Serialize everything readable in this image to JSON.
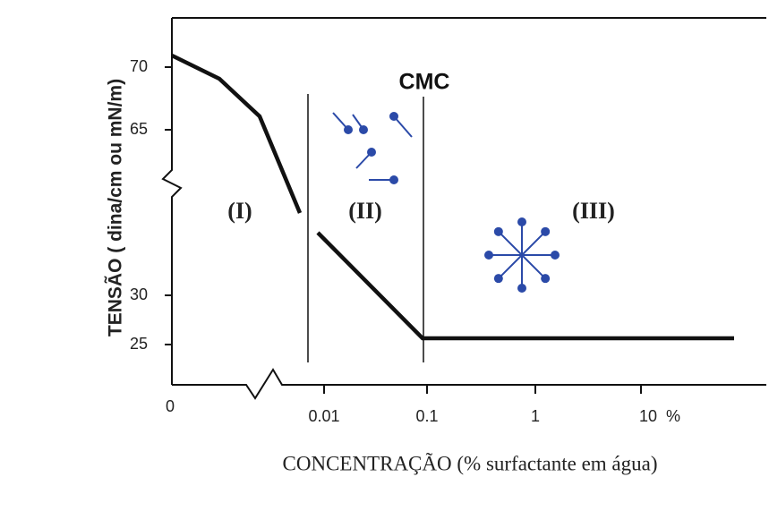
{
  "axes": {
    "y_title": "TENSÃO ( dina/cm ou mN/m)",
    "x_title": "CONCENTRAÇÃO (% surfactante em água)",
    "y_ticks": [
      "70",
      "65",
      "30",
      "25"
    ],
    "x_ticks": [
      "0",
      "0.01",
      "0.1",
      "1",
      "10  %"
    ]
  },
  "labels": {
    "cmc": "CMC",
    "regions": [
      "(I)",
      "(II)",
      "(III)"
    ]
  }
}
